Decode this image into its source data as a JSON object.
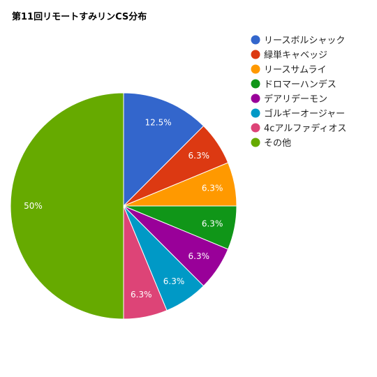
{
  "chart_data": {
    "type": "pie",
    "title": "第11回リモートすみリンCS分布",
    "legend_position": "right",
    "slices": [
      {
        "name": "リースボルシャック",
        "value": 12.5,
        "label": "12.5%",
        "color": "#3366cc"
      },
      {
        "name": "緑単キャベッジ",
        "value": 6.25,
        "label": "6.3%",
        "color": "#dc3912"
      },
      {
        "name": "リースサムライ",
        "value": 6.25,
        "label": "6.3%",
        "color": "#ff9900"
      },
      {
        "name": "ドロマーハンデス",
        "value": 6.25,
        "label": "6.3%",
        "color": "#109618"
      },
      {
        "name": "デアリデーモン",
        "value": 6.25,
        "label": "6.3%",
        "color": "#990099"
      },
      {
        "name": "ゴルギーオージャー",
        "value": 6.25,
        "label": "6.3%",
        "color": "#0099c6"
      },
      {
        "name": "4cアルファディオス",
        "value": 6.25,
        "label": "6.3%",
        "color": "#dd4477"
      },
      {
        "name": "その他",
        "value": 50,
        "label": "50%",
        "color": "#66aa00"
      }
    ]
  }
}
